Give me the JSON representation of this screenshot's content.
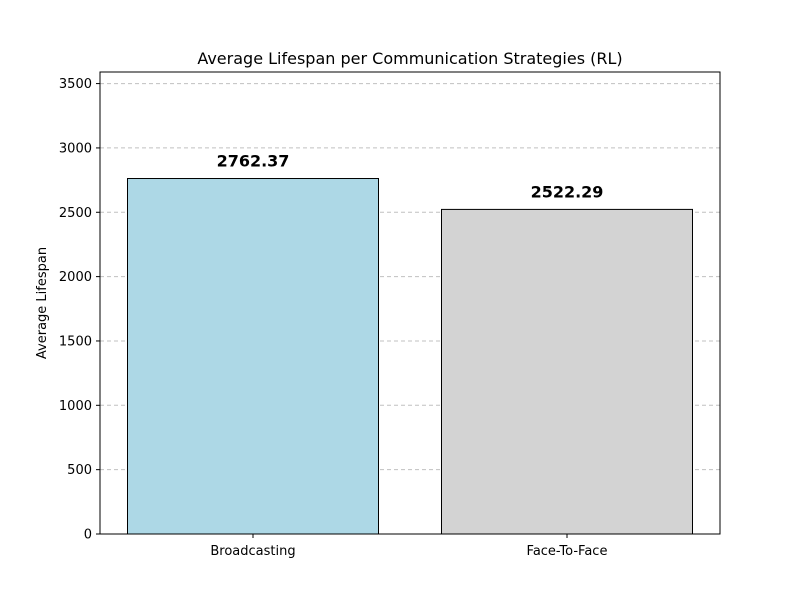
{
  "chart_data": {
    "type": "bar",
    "title": "Average Lifespan per Communication Strategies (RL)",
    "xlabel": "",
    "ylabel": "Average Lifespan",
    "categories": [
      "Broadcasting",
      "Face-To-Face"
    ],
    "values": [
      2762.37,
      2522.29
    ],
    "value_labels": [
      "2762.37",
      "2522.29"
    ],
    "bar_colors": [
      "#add8e6",
      "#d3d3d3"
    ],
    "bar_edge_color": "#000000",
    "ylim": [
      0,
      3590
    ],
    "yticks": [
      0,
      500,
      1000,
      1500,
      2000,
      2500,
      3000,
      3500
    ],
    "ytick_labels": [
      "0",
      "500",
      "1000",
      "1500",
      "2000",
      "2500",
      "3000",
      "3500"
    ],
    "grid": {
      "axis": "y",
      "style": "dashed",
      "color": "#c0c0c0"
    },
    "legend": "none"
  }
}
